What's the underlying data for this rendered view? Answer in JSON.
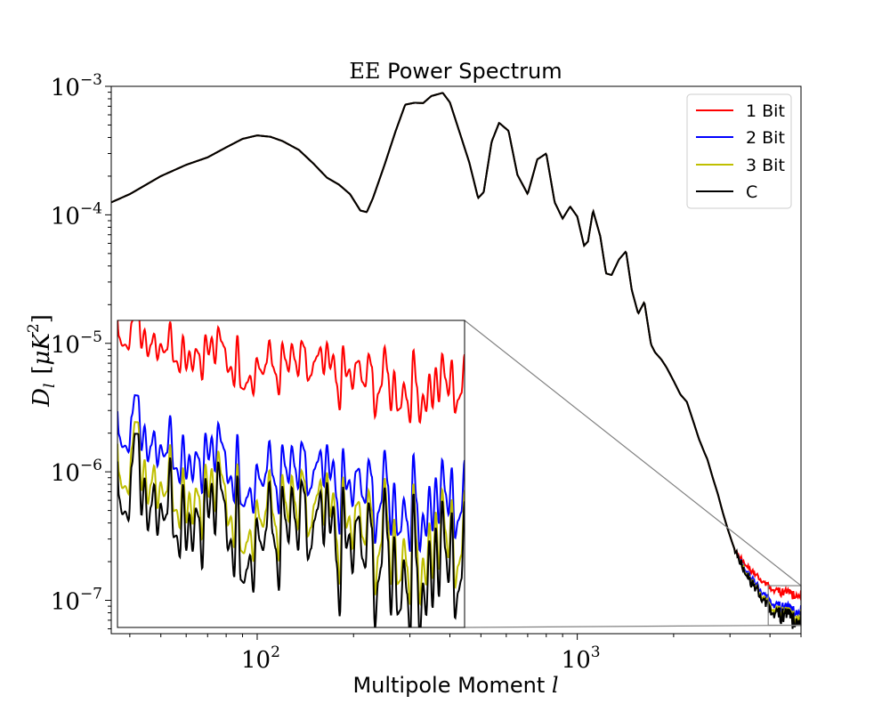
{
  "chart_data": {
    "type": "line",
    "title_prefix": "EE",
    "title_rest": " Power Spectrum",
    "xlabel_text": "Multipole Moment ",
    "xlabel_var": "l",
    "ylabel_var": "D",
    "ylabel_sub": "l",
    "ylabel_unit_open": "[",
    "ylabel_unit_mu": "μ",
    "ylabel_unit_k": "K",
    "ylabel_unit_sup": "2",
    "ylabel_unit_close": "]",
    "xscale": "log",
    "yscale": "log",
    "xlim": [
      35,
      5000
    ],
    "ylim": [
      5.5e-08,
      0.001
    ],
    "x_ticks": [
      {
        "value": 100,
        "base": "10",
        "exp": "2"
      },
      {
        "value": 1000,
        "base": "10",
        "exp": "3"
      }
    ],
    "y_ticks": [
      {
        "value": 0.001,
        "base": "10",
        "exp": "−3"
      },
      {
        "value": 0.0001,
        "base": "10",
        "exp": "−4"
      },
      {
        "value": 1e-05,
        "base": "10",
        "exp": "−5"
      },
      {
        "value": 1e-06,
        "base": "10",
        "exp": "−6"
      },
      {
        "value": 1e-07,
        "base": "10",
        "exp": "−7"
      }
    ],
    "legend": {
      "placement": "top-right"
    },
    "series": [
      {
        "name": "1 Bit",
        "color": "#ff0000",
        "tail_end": 1.1e-07
      },
      {
        "name": "2 Bit",
        "color": "#0000ff",
        "tail_end": 8.2e-08
      },
      {
        "name": "3 Bit",
        "color": "#bfbf00",
        "tail_end": 7.4e-08
      },
      {
        "name": "C",
        "color": "#000000",
        "tail_end": 7e-08
      }
    ],
    "common_curve": {
      "x": [
        35,
        40,
        50,
        60,
        70,
        80,
        90,
        100,
        110,
        120,
        135,
        150,
        165,
        180,
        195,
        210,
        220,
        230,
        250,
        270,
        290,
        310,
        330,
        350,
        380,
        400,
        430,
        460,
        490,
        510,
        540,
        570,
        610,
        650,
        700,
        750,
        800,
        850,
        900,
        950,
        1000,
        1050,
        1080,
        1120,
        1180,
        1230,
        1280,
        1350,
        1420,
        1480,
        1550,
        1620,
        1700,
        1750,
        1830,
        1900,
        2000,
        2100,
        2200,
        2300,
        2400,
        2500,
        2550,
        2650,
        2750,
        2850,
        2950,
        3050,
        3100
      ],
      "y": [
        0.000125,
        0.000145,
        0.0002,
        0.000245,
        0.00028,
        0.000335,
        0.00039,
        0.000415,
        0.000405,
        0.000375,
        0.00032,
        0.00025,
        0.000195,
        0.000172,
        0.000145,
        0.000108,
        0.000105,
        0.000135,
        0.000245,
        0.00044,
        0.00072,
        0.000745,
        0.00074,
        0.00084,
        0.00089,
        0.00075,
        0.00043,
        0.000255,
        0.000135,
        0.00015,
        0.00037,
        0.00052,
        0.00045,
        0.000205,
        0.000145,
        0.00027,
        0.0003,
        0.000125,
        9.35e-05,
        0.000116,
        9.7e-05,
        5.75e-05,
        6.2e-05,
        0.000108,
        6.8e-05,
        3.5e-05,
        3.4e-05,
        4.5e-05,
        5.2e-05,
        2.6e-05,
        1.7e-05,
        2.1e-05,
        9.8e-06,
        8.5e-06,
        7.5e-06,
        6.5e-06,
        5.1e-06,
        4e-06,
        3.5e-06,
        2.5e-06,
        1.8e-06,
        1.4e-06,
        1.25e-06,
        9e-07,
        6.7e-07,
        4.8e-07,
        3.6e-07,
        2.8e-07,
        2.5e-07
      ]
    },
    "tail_start_x": 3100,
    "tail_start_y": 2.5e-07,
    "zoom_box": {
      "xlim": [
        3950,
        5000
      ],
      "ylim": [
        6.4e-08,
        1.3e-07
      ]
    },
    "inset": {
      "placement": "lower-left",
      "ylim": [
        6e-08,
        1.3e-07
      ]
    }
  }
}
